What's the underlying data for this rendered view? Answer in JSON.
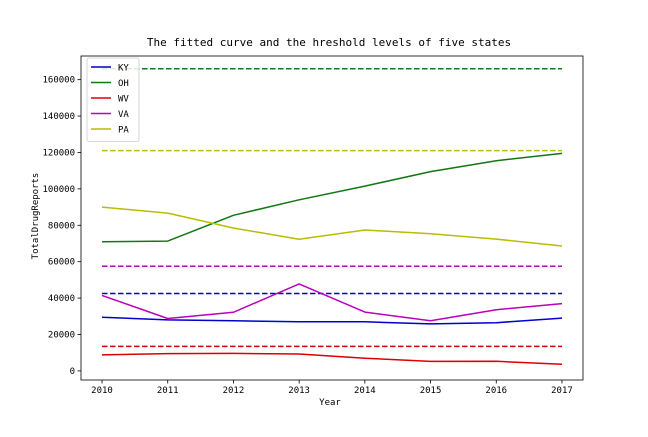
{
  "chart_data": {
    "type": "line",
    "title": "The fitted curve and the hreshold levels of five states",
    "xlabel": "Year",
    "ylabel": "TotalDrugReports",
    "x": [
      2010,
      2011,
      2012,
      2013,
      2014,
      2015,
      2016,
      2017
    ],
    "xlim": [
      2009.68,
      2017.32
    ],
    "ylim": [
      -5000,
      173000
    ],
    "yticks": [
      0,
      20000,
      40000,
      60000,
      80000,
      100000,
      120000,
      140000,
      160000
    ],
    "xticks": [
      2010,
      2011,
      2012,
      2013,
      2014,
      2015,
      2016,
      2017
    ],
    "grid": false,
    "legend_position": "top-left",
    "series": [
      {
        "name": "KY",
        "color": "#0000cc",
        "values": [
          29500,
          28000,
          27500,
          27000,
          27000,
          25800,
          26500,
          29000
        ],
        "threshold": 42500
      },
      {
        "name": "OH",
        "color": "#117711",
        "values": [
          71000,
          71300,
          85500,
          94000,
          101500,
          109500,
          115500,
          119500
        ],
        "threshold": 166000
      },
      {
        "name": "WV",
        "color": "#dd0000",
        "values": [
          8800,
          9500,
          9600,
          9300,
          7000,
          5200,
          5300,
          3600
        ],
        "threshold": 13500
      },
      {
        "name": "VA",
        "color": "#bb00bb",
        "values": [
          41500,
          28800,
          32200,
          47800,
          32300,
          27600,
          33600,
          37000
        ],
        "threshold": 57500
      },
      {
        "name": "PA",
        "color": "#bbbb00",
        "values": [
          90000,
          86700,
          78500,
          72300,
          77400,
          75400,
          72400,
          68600
        ],
        "threshold": 121000
      }
    ]
  }
}
